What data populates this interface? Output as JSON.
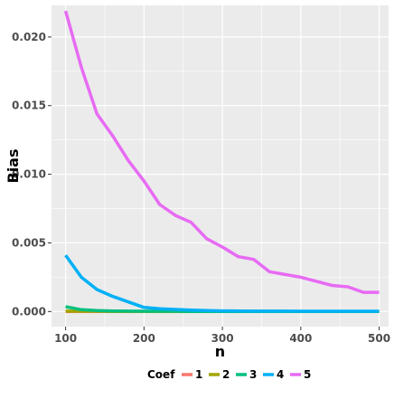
{
  "chart_data": {
    "type": "line",
    "xlabel": "n",
    "ylabel": "Bias",
    "xlim": [
      82,
      512
    ],
    "ylim": [
      -0.0011,
      0.0223
    ],
    "x_ticks": [
      100,
      200,
      300,
      400,
      500
    ],
    "x_tick_labels": [
      "100",
      "200",
      "300",
      "400",
      "500"
    ],
    "y_ticks": [
      0.0,
      0.005,
      0.01,
      0.015,
      0.02
    ],
    "y_tick_labels": [
      "0.000",
      "0.005",
      "0.010",
      "0.015",
      "0.020"
    ],
    "grid": true,
    "background": "#ebebeb",
    "legend": {
      "title": "Coef",
      "position": "bottom",
      "labels": [
        "1",
        "2",
        "3",
        "4",
        "5"
      ]
    },
    "x": [
      100,
      120,
      140,
      160,
      180,
      200,
      220,
      240,
      260,
      280,
      300,
      320,
      340,
      360,
      380,
      400,
      420,
      440,
      460,
      480,
      500
    ],
    "series": [
      {
        "name": "1",
        "color": "#F8766D",
        "values": [
          1e-05,
          1e-05,
          1e-05,
          1e-05,
          1e-05,
          1e-05,
          1e-05,
          1e-05,
          1e-05,
          1e-05,
          1e-05,
          1e-05,
          1e-05,
          1e-05,
          1e-05,
          1e-05,
          1e-05,
          1e-05,
          1e-05,
          1e-05,
          1e-05
        ]
      },
      {
        "name": "2",
        "color": "#A3A500",
        "values": [
          3e-05,
          2e-05,
          2e-05,
          1e-05,
          1e-05,
          1e-05,
          1e-05,
          1e-05,
          1e-05,
          1e-05,
          1e-05,
          1e-05,
          1e-05,
          1e-05,
          1e-05,
          1e-05,
          1e-05,
          1e-05,
          1e-05,
          1e-05,
          1e-05
        ]
      },
      {
        "name": "3",
        "color": "#00BF7D",
        "values": [
          0.00035,
          0.00013,
          7e-05,
          4e-05,
          3e-05,
          2e-05,
          2e-05,
          2e-05,
          1e-05,
          1e-05,
          1e-05,
          1e-05,
          1e-05,
          1e-05,
          1e-05,
          1e-05,
          1e-05,
          1e-05,
          1e-05,
          1e-05,
          1e-05
        ]
      },
      {
        "name": "4",
        "color": "#00B0F6",
        "values": [
          0.0041,
          0.0025,
          0.0016,
          0.0011,
          0.0007,
          0.0003,
          0.0002,
          0.00015,
          0.0001,
          7e-05,
          5e-05,
          4e-05,
          3e-05,
          3e-05,
          3e-05,
          2e-05,
          2e-05,
          2e-05,
          2e-05,
          2e-05,
          2e-05
        ]
      },
      {
        "name": "5",
        "color": "#E76BF3",
        "values": [
          0.0219,
          0.0178,
          0.0144,
          0.0128,
          0.011,
          0.0095,
          0.0078,
          0.007,
          0.0065,
          0.0053,
          0.0047,
          0.004,
          0.0038,
          0.0029,
          0.0027,
          0.0025,
          0.0022,
          0.0019,
          0.0018,
          0.0014,
          0.0014
        ]
      }
    ]
  }
}
